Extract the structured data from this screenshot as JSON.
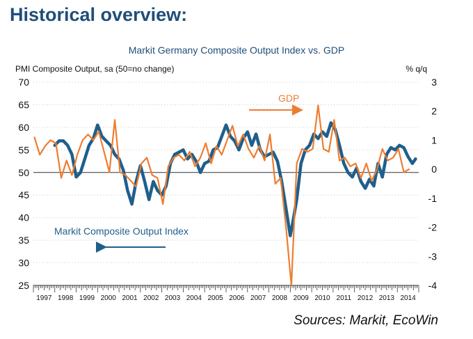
{
  "page": {
    "heading": "Historical overview:"
  },
  "colors": {
    "pmi": "#1f5f8b",
    "gdp": "#ed7d31",
    "heading": "#1f4e79"
  },
  "chart_data": {
    "type": "line",
    "title": "Markit Germany Composite Output Index vs. GDP",
    "ylabel_left": "PMI Composite Output, sa (50=no change)",
    "ylabel_right": "% q/q",
    "ylim_left": [
      25,
      70
    ],
    "ylim_right": [
      -4,
      3
    ],
    "yticks_left": [
      "70",
      "65",
      "60",
      "55",
      "50",
      "45",
      "40",
      "35",
      "30",
      "25"
    ],
    "yticks_right": [
      "3",
      "2",
      "1",
      "0",
      "-1",
      "-2",
      "-3",
      "-4"
    ],
    "x_labels": [
      "1997",
      "1998",
      "1999",
      "2000",
      "2001",
      "2002",
      "2003",
      "2004",
      "2005",
      "2006",
      "2007",
      "2008",
      "2009",
      "2010",
      "2011",
      "2012",
      "2013",
      "2014"
    ],
    "grid": true,
    "annotations": {
      "gdp_label": "GDP",
      "pmi_label": "Markit Composite Output Index",
      "source": "Sources: Markit, EcoWin"
    },
    "series": [
      {
        "name": "Markit Composite Output Index",
        "axis": "left",
        "x": [
          1998.0,
          1998.2,
          1998.4,
          1998.6,
          1998.8,
          1999.0,
          1999.2,
          1999.4,
          1999.6,
          1999.8,
          2000.0,
          2000.2,
          2000.4,
          2000.6,
          2000.8,
          2001.0,
          2001.2,
          2001.4,
          2001.6,
          2001.8,
          2002.0,
          2002.2,
          2002.4,
          2002.6,
          2002.8,
          2003.0,
          2003.2,
          2003.4,
          2003.6,
          2003.8,
          2004.0,
          2004.2,
          2004.4,
          2004.6,
          2004.8,
          2005.0,
          2005.2,
          2005.4,
          2005.6,
          2005.8,
          2006.0,
          2006.2,
          2006.4,
          2006.6,
          2006.8,
          2007.0,
          2007.2,
          2007.4,
          2007.6,
          2007.8,
          2008.0,
          2008.2,
          2008.4,
          2008.6,
          2008.8,
          2009.0,
          2009.1,
          2009.3,
          2009.5,
          2009.7,
          2009.9,
          2010.1,
          2010.3,
          2010.5,
          2010.7,
          2010.9,
          2011.1,
          2011.3,
          2011.5,
          2011.7,
          2011.9,
          2012.1,
          2012.3,
          2012.5,
          2012.7,
          2012.9,
          2013.1,
          2013.3,
          2013.5,
          2013.7,
          2013.9,
          2014.1,
          2014.3,
          2014.5,
          2014.7,
          2014.85
        ],
        "values": [
          56.0,
          57.0,
          57.0,
          56.0,
          54.0,
          49.0,
          50.0,
          53.0,
          56.0,
          57.5,
          60.5,
          58.0,
          57.0,
          56.0,
          54.0,
          53.0,
          50.5,
          46.0,
          43.0,
          48.0,
          51.5,
          48.0,
          44.0,
          48.0,
          46.0,
          45.0,
          47.0,
          52.0,
          54.0,
          54.5,
          55.0,
          53.0,
          54.0,
          52.5,
          50.0,
          52.0,
          52.5,
          55.0,
          55.5,
          58.0,
          60.5,
          58.0,
          57.0,
          55.0,
          57.5,
          59.0,
          56.0,
          58.5,
          55.0,
          53.5,
          54.0,
          54.5,
          52.5,
          48.0,
          42.0,
          36.0,
          38.5,
          44.0,
          52.0,
          55.0,
          56.0,
          58.5,
          57.5,
          59.0,
          58.0,
          61.0,
          59.5,
          56.0,
          52.0,
          50.0,
          49.0,
          51.0,
          48.0,
          46.5,
          48.5,
          47.0,
          52.0,
          49.0,
          54.0,
          55.5,
          55.0,
          56.0,
          55.5,
          53.5,
          52.0,
          53.0
        ]
      },
      {
        "name": "GDP",
        "axis": "right",
        "x": [
          1997.05,
          1997.3,
          1997.55,
          1997.8,
          1998.05,
          1998.3,
          1998.55,
          1998.8,
          1999.05,
          1999.3,
          1999.55,
          1999.8,
          2000.05,
          2000.3,
          2000.55,
          2000.8,
          2001.05,
          2001.3,
          2001.55,
          2001.8,
          2002.05,
          2002.3,
          2002.55,
          2002.8,
          2003.05,
          2003.3,
          2003.55,
          2003.8,
          2004.05,
          2004.3,
          2004.55,
          2004.8,
          2005.05,
          2005.3,
          2005.55,
          2005.8,
          2006.05,
          2006.3,
          2006.55,
          2006.8,
          2007.05,
          2007.3,
          2007.55,
          2007.8,
          2008.05,
          2008.3,
          2008.55,
          2008.8,
          2009.05,
          2009.3,
          2009.55,
          2009.8,
          2010.05,
          2010.3,
          2010.55,
          2010.8,
          2011.05,
          2011.3,
          2011.55,
          2011.8,
          2012.05,
          2012.3,
          2012.55,
          2012.8,
          2013.05,
          2013.3,
          2013.55,
          2013.8,
          2014.05,
          2014.3,
          2014.55
        ],
        "values": [
          1.1,
          0.5,
          0.8,
          1.0,
          0.9,
          -0.3,
          0.3,
          -0.2,
          0.5,
          1.0,
          1.2,
          1.0,
          1.3,
          0.6,
          -0.1,
          1.7,
          -0.1,
          -0.2,
          -0.4,
          -0.6,
          0.2,
          0.4,
          -0.2,
          -0.3,
          -1.2,
          0.1,
          0.4,
          0.5,
          0.3,
          0.6,
          0.1,
          0.4,
          0.9,
          0.2,
          0.8,
          0.5,
          1.0,
          1.5,
          0.8,
          1.2,
          0.7,
          0.4,
          0.8,
          0.3,
          1.2,
          -0.5,
          -0.3,
          -2.0,
          -4.0,
          0.2,
          0.7,
          0.6,
          0.7,
          2.2,
          0.7,
          0.6,
          1.7,
          0.3,
          0.4,
          0.1,
          0.2,
          -0.3,
          0.2,
          -0.4,
          0.0,
          0.7,
          0.3,
          0.4,
          0.7,
          -0.1,
          0.0
        ]
      }
    ]
  }
}
